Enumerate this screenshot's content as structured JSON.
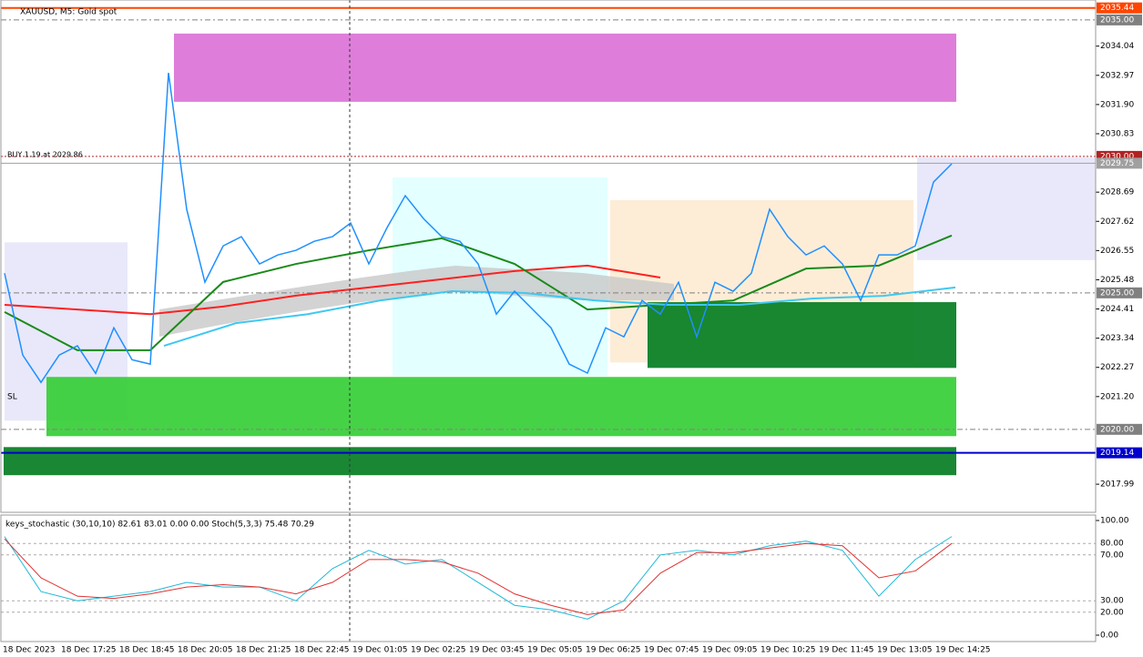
{
  "chart_data": {
    "type": "price-line",
    "title": "XAUUSD, M5:  Gold spot",
    "trade_label": "BUY 1.19 at 2029.86",
    "sl_label": "SL",
    "indicator_label": "keys_stochastic (30,10,10) 82.61 83.01 0.00 0.00 Stoch(5,3,3) 75.48 70.29",
    "ylim": [
      2016.96,
      2035.73
    ],
    "yticks": [
      {
        "value": 2034.04,
        "label": "2034.04"
      },
      {
        "value": 2032.97,
        "label": "2032.97"
      },
      {
        "value": 2031.9,
        "label": "2031.90"
      },
      {
        "value": 2030.83,
        "label": "2030.83"
      },
      {
        "value": 2028.69,
        "label": "2028.69"
      },
      {
        "value": 2027.62,
        "label": "2027.62"
      },
      {
        "value": 2026.55,
        "label": "2026.55"
      },
      {
        "value": 2025.48,
        "label": "2025.48"
      },
      {
        "value": 2024.41,
        "label": "2024.41"
      },
      {
        "value": 2023.34,
        "label": "2023.34"
      },
      {
        "value": 2022.27,
        "label": "2022.27"
      },
      {
        "value": 2021.2,
        "label": "2021.20"
      },
      {
        "value": 2017.99,
        "label": "2017.99"
      }
    ],
    "categories": [
      "18 Dec 2023",
      "18 Dec 17:25",
      "18 Dec 18:45",
      "18 Dec 20:05",
      "18 Dec 21:25",
      "18 Dec 22:45",
      "19 Dec 01:05",
      "19 Dec 02:25",
      "19 Dec 03:45",
      "19 Dec 05:05",
      "19 Dec 06:25",
      "19 Dec 07:45",
      "19 Dec 09:05",
      "19 Dec 10:25",
      "19 Dec 11:45",
      "19 Dec 13:05",
      "19 Dec 14:25"
    ],
    "price": {
      "color": "#1e90ff",
      "values": [
        2025.72,
        2022.72,
        2021.72,
        2022.72,
        2023.06,
        2022.05,
        2023.72,
        2022.55,
        2022.39,
        2033.06,
        2028.06,
        2025.39,
        2026.72,
        2027.06,
        2026.06,
        2026.39,
        2026.56,
        2026.89,
        2027.06,
        2027.56,
        2026.06,
        2027.39,
        2028.56,
        2027.72,
        2027.06,
        2026.89,
        2026.06,
        2024.22,
        2025.06,
        2024.39,
        2023.72,
        2022.39,
        2022.06,
        2023.72,
        2023.39,
        2024.72,
        2024.22,
        2025.39,
        2023.39,
        2025.39,
        2025.06,
        2025.72,
        2028.06,
        2027.06,
        2026.39,
        2026.72,
        2026.06,
        2024.72,
        2026.39,
        2026.39,
        2026.72,
        2029.06,
        2029.73
      ]
    },
    "averages": [
      {
        "color": "#ff2020",
        "values": [
          2024.56,
          2024.39,
          2024.22,
          2024.5,
          2024.9,
          2025.2,
          2025.5,
          2025.8,
          2026.0,
          2025.56
        ]
      },
      {
        "color": "#1a8a1a",
        "values": [
          2024.3,
          2022.9,
          2022.9,
          2025.4,
          2026.06,
          2026.56,
          2027.0,
          2026.06,
          2024.39,
          2024.56,
          2024.72,
          2025.89,
          2026.0,
          2027.1
        ]
      },
      {
        "color": "#40c8f0",
        "values": [
          2023.06,
          2023.89,
          2024.22,
          2024.72,
          2025.06,
          2025.0,
          2024.72,
          2024.56,
          2024.56,
          2024.79,
          2024.89,
          2025.2
        ]
      }
    ],
    "zones": [
      {
        "top": 2034.5,
        "bottom": 2032.0,
        "color": "#da70d6"
      },
      {
        "top": 2029.23,
        "bottom": 2021.95,
        "color": "#e0ffff"
      },
      {
        "top": 2028.4,
        "bottom": 2022.45,
        "color": "#fdebd3"
      },
      {
        "top": 2026.85,
        "bottom": 2020.32,
        "color": "#e6e6fa"
      },
      {
        "top": 2029.96,
        "bottom": 2026.2,
        "color": "#e6e6fa"
      },
      {
        "top": 2024.66,
        "bottom": 2022.25,
        "color": "#007a1e"
      },
      {
        "top": 2021.92,
        "bottom": 2019.75,
        "color": "#32cd32"
      },
      {
        "top": 2019.35,
        "bottom": 2018.32,
        "color": "#007a1e"
      }
    ],
    "levels": [
      {
        "value": 2035.44,
        "label": "2035.44",
        "color": "#ff4500"
      },
      {
        "value": 2035.0,
        "label": "2035.00",
        "color": "#808080"
      },
      {
        "value": 2030.0,
        "label": "2030.00",
        "color": "#b22222"
      },
      {
        "value": 2029.75,
        "label": "2029.75",
        "color": "#a0a0a0"
      },
      {
        "value": 2025.0,
        "label": "2025.00",
        "color": "#808080"
      },
      {
        "value": 2020.0,
        "label": "2020.00",
        "color": "#808080"
      },
      {
        "value": 2019.14,
        "label": "2019.14",
        "color": "#0000cd"
      }
    ],
    "stoch_ylim": [
      -5.56,
      104.76
    ],
    "stoch_yticks": [
      {
        "value": 100,
        "label": "100.00"
      },
      {
        "value": 80,
        "label": "80.00"
      },
      {
        "value": 70,
        "label": "70.00"
      },
      {
        "value": 30,
        "label": "30.00"
      },
      {
        "value": 20,
        "label": "20.00"
      },
      {
        "value": 0,
        "label": "0.00"
      }
    ],
    "stoch": [
      {
        "color": "#20b8d8",
        "values": [
          86,
          38,
          30,
          34,
          38,
          46,
          42,
          42,
          30,
          58,
          74,
          62,
          66,
          46,
          26,
          22,
          14,
          30,
          70,
          74,
          70,
          78,
          82,
          74,
          34,
          66,
          86
        ]
      },
      {
        "color": "#e03030",
        "values": [
          84,
          50,
          34,
          32,
          36,
          42,
          44,
          42,
          36,
          46,
          66,
          66,
          64,
          54,
          36,
          26,
          18,
          22,
          54,
          72,
          72,
          76,
          80,
          78,
          50,
          56,
          80
        ]
      }
    ]
  }
}
